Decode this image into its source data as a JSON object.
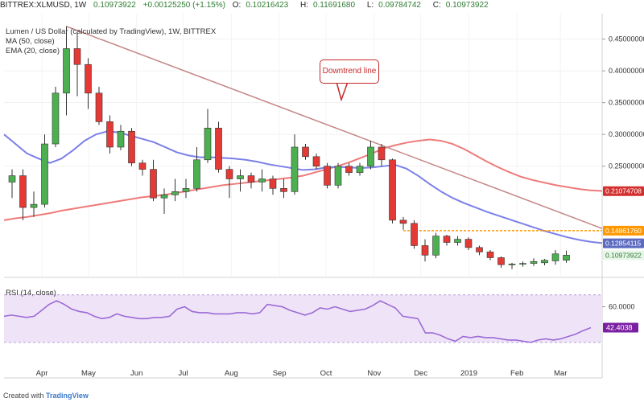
{
  "header": {
    "symbol": "BITTREX:XLMUSD, 1W",
    "last": "0.10973922",
    "change": "+0.00125250 (+1.15%)",
    "open_label": "O:",
    "open": "0.10216423",
    "high_label": "H:",
    "high": "0.11691680",
    "low_label": "L:",
    "low": "0.09784742",
    "close_label": "C:",
    "close": "0.10973922"
  },
  "legend": {
    "title": "Lumen / US Dollar (calculated by TradingView), 1W, BITTREX",
    "ma": "MA (50, close)",
    "ema": "EMA (20, close)",
    "rsi": "RSI (14, close)"
  },
  "annotation": "Downtrend line",
  "footer": {
    "prefix": "Created with",
    "brand": "TradingView"
  },
  "colors": {
    "up": "#4caf50",
    "down": "#e53935",
    "ma50": "#ef7a7a",
    "ema20": "#7b80e8",
    "trend": "#c48585",
    "support": "#ff9800",
    "rsi": "#9c6ad6",
    "rsi_band": "#efe4f7"
  },
  "chart_data": [
    {
      "type": "candlestick",
      "title": "Lumen / US Dollar (calculated by TradingView), 1W, BITTREX",
      "ylim": [
        0.075,
        0.49
      ],
      "y_ticks": [
        "0.45000000",
        "0.40000000",
        "0.35000000",
        "0.30000000",
        "0.25000000"
      ],
      "x_ticks": [
        "Apr",
        "May",
        "Jun",
        "Jul",
        "Aug",
        "Sep",
        "Oct",
        "Nov",
        "Dec",
        "2019",
        "Feb",
        "Mar"
      ],
      "price_labels": [
        {
          "value": 0.21074708,
          "label": "0.21074708",
          "series": "ma50"
        },
        {
          "value": 0.1486176,
          "label": "0.14861760",
          "series": "support"
        },
        {
          "value": 0.12854115,
          "label": "0.12854115",
          "series": "ema20"
        },
        {
          "value": 0.10973922,
          "label": "0.10973922",
          "series": "last"
        }
      ],
      "candles": [
        {
          "d": "2018-03-19",
          "o": 0.225,
          "h": 0.245,
          "l": 0.2,
          "c": 0.235
        },
        {
          "d": "2018-03-26",
          "o": 0.235,
          "h": 0.245,
          "l": 0.165,
          "c": 0.185
        },
        {
          "d": "2018-04-02",
          "o": 0.185,
          "h": 0.21,
          "l": 0.17,
          "c": 0.19
        },
        {
          "d": "2018-04-09",
          "o": 0.19,
          "h": 0.3,
          "l": 0.185,
          "c": 0.285
        },
        {
          "d": "2018-04-16",
          "o": 0.285,
          "h": 0.375,
          "l": 0.28,
          "c": 0.365
        },
        {
          "d": "2018-04-23",
          "o": 0.365,
          "h": 0.47,
          "l": 0.33,
          "c": 0.435
        },
        {
          "d": "2018-04-30",
          "o": 0.435,
          "h": 0.46,
          "l": 0.36,
          "c": 0.41
        },
        {
          "d": "2018-05-07",
          "o": 0.41,
          "h": 0.42,
          "l": 0.34,
          "c": 0.365
        },
        {
          "d": "2018-05-14",
          "o": 0.365,
          "h": 0.375,
          "l": 0.315,
          "c": 0.32
        },
        {
          "d": "2018-05-21",
          "o": 0.32,
          "h": 0.33,
          "l": 0.27,
          "c": 0.28
        },
        {
          "d": "2018-05-28",
          "o": 0.28,
          "h": 0.315,
          "l": 0.275,
          "c": 0.305
        },
        {
          "d": "2018-06-04",
          "o": 0.305,
          "h": 0.31,
          "l": 0.25,
          "c": 0.255
        },
        {
          "d": "2018-06-11",
          "o": 0.255,
          "h": 0.26,
          "l": 0.235,
          "c": 0.245
        },
        {
          "d": "2018-06-18",
          "o": 0.245,
          "h": 0.26,
          "l": 0.195,
          "c": 0.2
        },
        {
          "d": "2018-06-25",
          "o": 0.2,
          "h": 0.215,
          "l": 0.175,
          "c": 0.205
        },
        {
          "d": "2018-07-02",
          "o": 0.205,
          "h": 0.23,
          "l": 0.195,
          "c": 0.21
        },
        {
          "d": "2018-07-09",
          "o": 0.21,
          "h": 0.23,
          "l": 0.2,
          "c": 0.215
        },
        {
          "d": "2018-07-16",
          "o": 0.215,
          "h": 0.28,
          "l": 0.21,
          "c": 0.26
        },
        {
          "d": "2018-07-23",
          "o": 0.26,
          "h": 0.34,
          "l": 0.255,
          "c": 0.31
        },
        {
          "d": "2018-07-30",
          "o": 0.31,
          "h": 0.32,
          "l": 0.24,
          "c": 0.245
        },
        {
          "d": "2018-08-06",
          "o": 0.245,
          "h": 0.25,
          "l": 0.2,
          "c": 0.23
        },
        {
          "d": "2018-08-13",
          "o": 0.23,
          "h": 0.245,
          "l": 0.21,
          "c": 0.235
        },
        {
          "d": "2018-08-20",
          "o": 0.235,
          "h": 0.24,
          "l": 0.215,
          "c": 0.225
        },
        {
          "d": "2018-08-27",
          "o": 0.225,
          "h": 0.245,
          "l": 0.21,
          "c": 0.23
        },
        {
          "d": "2018-09-03",
          "o": 0.23,
          "h": 0.235,
          "l": 0.205,
          "c": 0.215
        },
        {
          "d": "2018-09-10",
          "o": 0.215,
          "h": 0.23,
          "l": 0.2,
          "c": 0.21
        },
        {
          "d": "2018-09-17",
          "o": 0.21,
          "h": 0.3,
          "l": 0.205,
          "c": 0.28
        },
        {
          "d": "2018-09-24",
          "o": 0.28,
          "h": 0.285,
          "l": 0.26,
          "c": 0.265
        },
        {
          "d": "2018-10-01",
          "o": 0.265,
          "h": 0.27,
          "l": 0.245,
          "c": 0.25
        },
        {
          "d": "2018-10-08",
          "o": 0.25,
          "h": 0.255,
          "l": 0.215,
          "c": 0.22
        },
        {
          "d": "2018-10-15",
          "o": 0.22,
          "h": 0.255,
          "l": 0.215,
          "c": 0.25
        },
        {
          "d": "2018-10-22",
          "o": 0.25,
          "h": 0.255,
          "l": 0.235,
          "c": 0.24
        },
        {
          "d": "2018-10-29",
          "o": 0.24,
          "h": 0.255,
          "l": 0.235,
          "c": 0.25
        },
        {
          "d": "2018-11-05",
          "o": 0.25,
          "h": 0.29,
          "l": 0.245,
          "c": 0.28
        },
        {
          "d": "2018-11-12",
          "o": 0.28,
          "h": 0.285,
          "l": 0.25,
          "c": 0.26
        },
        {
          "d": "2018-11-19",
          "o": 0.26,
          "h": 0.262,
          "l": 0.16,
          "c": 0.165
        },
        {
          "d": "2018-11-26",
          "o": 0.165,
          "h": 0.17,
          "l": 0.15,
          "c": 0.16
        },
        {
          "d": "2018-12-03",
          "o": 0.16,
          "h": 0.165,
          "l": 0.12,
          "c": 0.125
        },
        {
          "d": "2018-12-10",
          "o": 0.125,
          "h": 0.135,
          "l": 0.1,
          "c": 0.11
        },
        {
          "d": "2018-12-17",
          "o": 0.11,
          "h": 0.145,
          "l": 0.105,
          "c": 0.14
        },
        {
          "d": "2018-12-24",
          "o": 0.14,
          "h": 0.142,
          "l": 0.125,
          "c": 0.13
        },
        {
          "d": "2018-12-31",
          "o": 0.13,
          "h": 0.14,
          "l": 0.125,
          "c": 0.135
        },
        {
          "d": "2019-01-07",
          "o": 0.135,
          "h": 0.138,
          "l": 0.118,
          "c": 0.122
        },
        {
          "d": "2019-01-14",
          "o": 0.122,
          "h": 0.125,
          "l": 0.11,
          "c": 0.115
        },
        {
          "d": "2019-01-21",
          "o": 0.115,
          "h": 0.118,
          "l": 0.102,
          "c": 0.106
        },
        {
          "d": "2019-01-28",
          "o": 0.106,
          "h": 0.108,
          "l": 0.09,
          "c": 0.095
        },
        {
          "d": "2019-02-04",
          "o": 0.095,
          "h": 0.098,
          "l": 0.088,
          "c": 0.096
        },
        {
          "d": "2019-02-11",
          "o": 0.096,
          "h": 0.1,
          "l": 0.092,
          "c": 0.097
        },
        {
          "d": "2019-02-18",
          "o": 0.097,
          "h": 0.105,
          "l": 0.093,
          "c": 0.1
        },
        {
          "d": "2019-02-25",
          "o": 0.098,
          "h": 0.104,
          "l": 0.094,
          "c": 0.102
        },
        {
          "d": "2019-03-04",
          "o": 0.101,
          "h": 0.118,
          "l": 0.095,
          "c": 0.112
        },
        {
          "d": "2019-03-11",
          "o": 0.102,
          "h": 0.117,
          "l": 0.098,
          "c": 0.11
        }
      ],
      "ma50": [
        0.165,
        0.168,
        0.17,
        0.173,
        0.176,
        0.18,
        0.183,
        0.186,
        0.189,
        0.192,
        0.195,
        0.198,
        0.201,
        0.203,
        0.205,
        0.208,
        0.211,
        0.214,
        0.217,
        0.22,
        0.222,
        0.224,
        0.226,
        0.228,
        0.23,
        0.232,
        0.235,
        0.24,
        0.245,
        0.25,
        0.256,
        0.263,
        0.27,
        0.278,
        0.283,
        0.287,
        0.29,
        0.292,
        0.29,
        0.285,
        0.277,
        0.267,
        0.257,
        0.248,
        0.24,
        0.233,
        0.228,
        0.224,
        0.22,
        0.217,
        0.214,
        0.212,
        0.211
      ],
      "ema20": [
        0.3,
        0.285,
        0.27,
        0.262,
        0.255,
        0.262,
        0.275,
        0.29,
        0.3,
        0.305,
        0.303,
        0.298,
        0.293,
        0.288,
        0.28,
        0.272,
        0.267,
        0.264,
        0.264,
        0.263,
        0.262,
        0.26,
        0.257,
        0.253,
        0.25,
        0.247,
        0.244,
        0.245,
        0.248,
        0.249,
        0.248,
        0.247,
        0.248,
        0.25,
        0.252,
        0.246,
        0.235,
        0.222,
        0.21,
        0.2,
        0.192,
        0.185,
        0.178,
        0.172,
        0.166,
        0.16,
        0.154,
        0.148,
        0.143,
        0.138,
        0.134,
        0.131,
        0.129
      ],
      "downtrend_line": {
        "from": {
          "d": "2018-04-23",
          "y": 0.47
        },
        "to": {
          "d": "2019-03-25",
          "y": 0.152
        }
      },
      "support_line": {
        "from_date": "2018-11-26",
        "y": 0.1486176
      }
    },
    {
      "type": "line",
      "title": "RSI (14, close)",
      "ylim": [
        15,
        80
      ],
      "band": [
        30,
        70
      ],
      "y_ticks": [
        "60.0000"
      ],
      "last_label": "42.4038",
      "values": [
        52,
        53,
        52,
        51,
        52,
        57,
        62,
        65,
        62,
        58,
        56,
        55,
        52,
        50,
        51,
        54,
        52,
        51,
        50,
        50,
        51,
        51,
        52,
        58,
        60,
        56,
        55,
        55,
        54,
        54,
        54,
        55,
        55,
        54,
        55,
        62,
        61,
        60,
        57,
        55,
        53,
        55,
        59,
        58,
        60,
        58,
        56,
        57,
        58,
        61,
        65,
        62,
        59,
        52,
        51,
        50,
        38,
        38,
        36,
        33,
        31,
        35,
        34,
        35,
        34,
        34,
        33,
        32,
        32,
        31,
        30,
        32,
        33,
        32,
        33,
        35,
        37,
        40,
        42.4
      ]
    }
  ]
}
